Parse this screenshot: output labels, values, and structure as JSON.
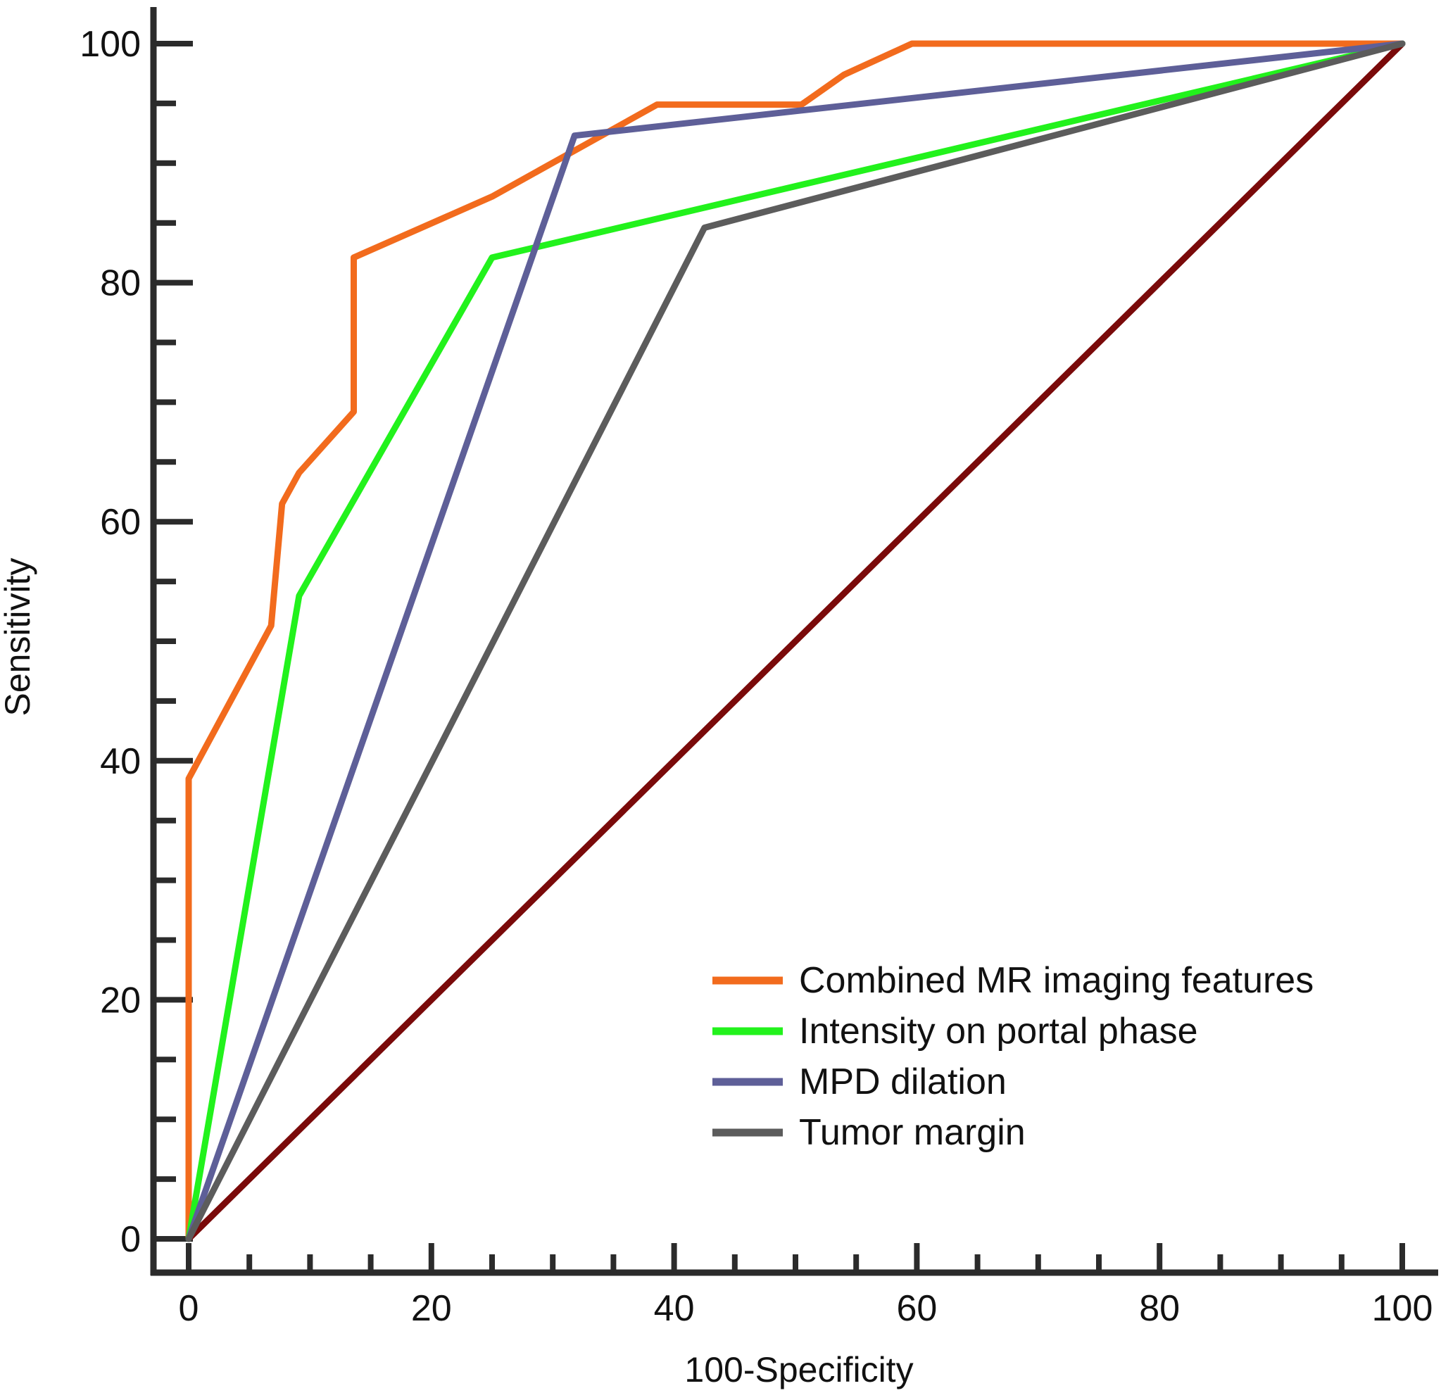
{
  "chart_data": {
    "type": "line",
    "title": "",
    "xlabel": "100-Specificity",
    "ylabel": "Sensitivity",
    "xlim": [
      0,
      100
    ],
    "ylim": [
      0,
      100
    ],
    "x_ticks": [
      0,
      20,
      40,
      60,
      80,
      100
    ],
    "y_ticks": [
      0,
      20,
      40,
      60,
      80,
      100
    ],
    "x_minor_step": 5,
    "y_minor_step": 5,
    "grid": false,
    "legend_position": "bottom-right",
    "series": [
      {
        "name": "Combined MR imaging features",
        "color": "#f26b1d",
        "points": [
          [
            0,
            0
          ],
          [
            0,
            38.5
          ],
          [
            6.8,
            51.3
          ],
          [
            7.7,
            61.5
          ],
          [
            9.1,
            64.1
          ],
          [
            13.6,
            69.2
          ],
          [
            13.6,
            82.1
          ],
          [
            25,
            87.2
          ],
          [
            38.6,
            94.9
          ],
          [
            50.5,
            94.9
          ],
          [
            54,
            97.4
          ],
          [
            59.6,
            100
          ],
          [
            100,
            100
          ]
        ]
      },
      {
        "name": "Intensity on portal phase",
        "color": "#22f21c",
        "points": [
          [
            0,
            0
          ],
          [
            9.1,
            53.8
          ],
          [
            25,
            82.1
          ],
          [
            100,
            100
          ]
        ]
      },
      {
        "name": "MPD dilation",
        "color": "#5e5f98",
        "points": [
          [
            0,
            0
          ],
          [
            31.8,
            92.3
          ],
          [
            100,
            100
          ]
        ]
      },
      {
        "name": "Tumor margin",
        "color": "#5c5c5c",
        "points": [
          [
            0,
            0
          ],
          [
            42.5,
            84.6
          ],
          [
            100,
            100
          ]
        ]
      },
      {
        "color": "#7a0a0a",
        "points": [
          [
            0,
            0
          ],
          [
            100,
            100
          ]
        ]
      }
    ]
  }
}
